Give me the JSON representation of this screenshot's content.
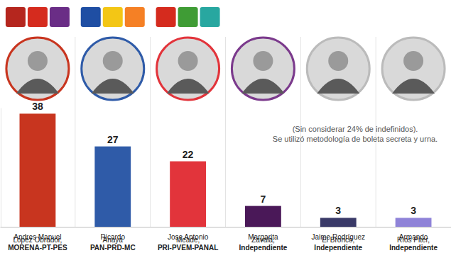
{
  "chart_data": {
    "type": "bar",
    "categories": [
      "Andres Manuel\nLopez Obrador,\nMORENA-PT-PES",
      "Ricardo\nAnaya\nPAN-PRD-MC",
      "Jose Antonio\nMeade,\nPRI-PVEM-PANAL",
      "Margarita\nZavala,\nIndependiente",
      "Jaime Rodríguez\nEl Bronco,\nIndependiente",
      "Armando\nRíos Piter,\nIndependiente"
    ],
    "values": [
      38,
      27,
      22,
      7,
      3,
      3
    ],
    "colors": [
      "#c8351f",
      "#2f5ba8",
      "#e2343b",
      "#4a1858",
      "#3a3a68",
      "#8f83d8"
    ],
    "ylim": [
      0,
      40
    ],
    "yticks": [],
    "data_labels": true,
    "tick_labels": "x",
    "grid": false,
    "annotations": [
      "(Sin considerar 24% de indefinidos).",
      "Se utilizó metodología de boleta secreta y urna."
    ]
  }
}
